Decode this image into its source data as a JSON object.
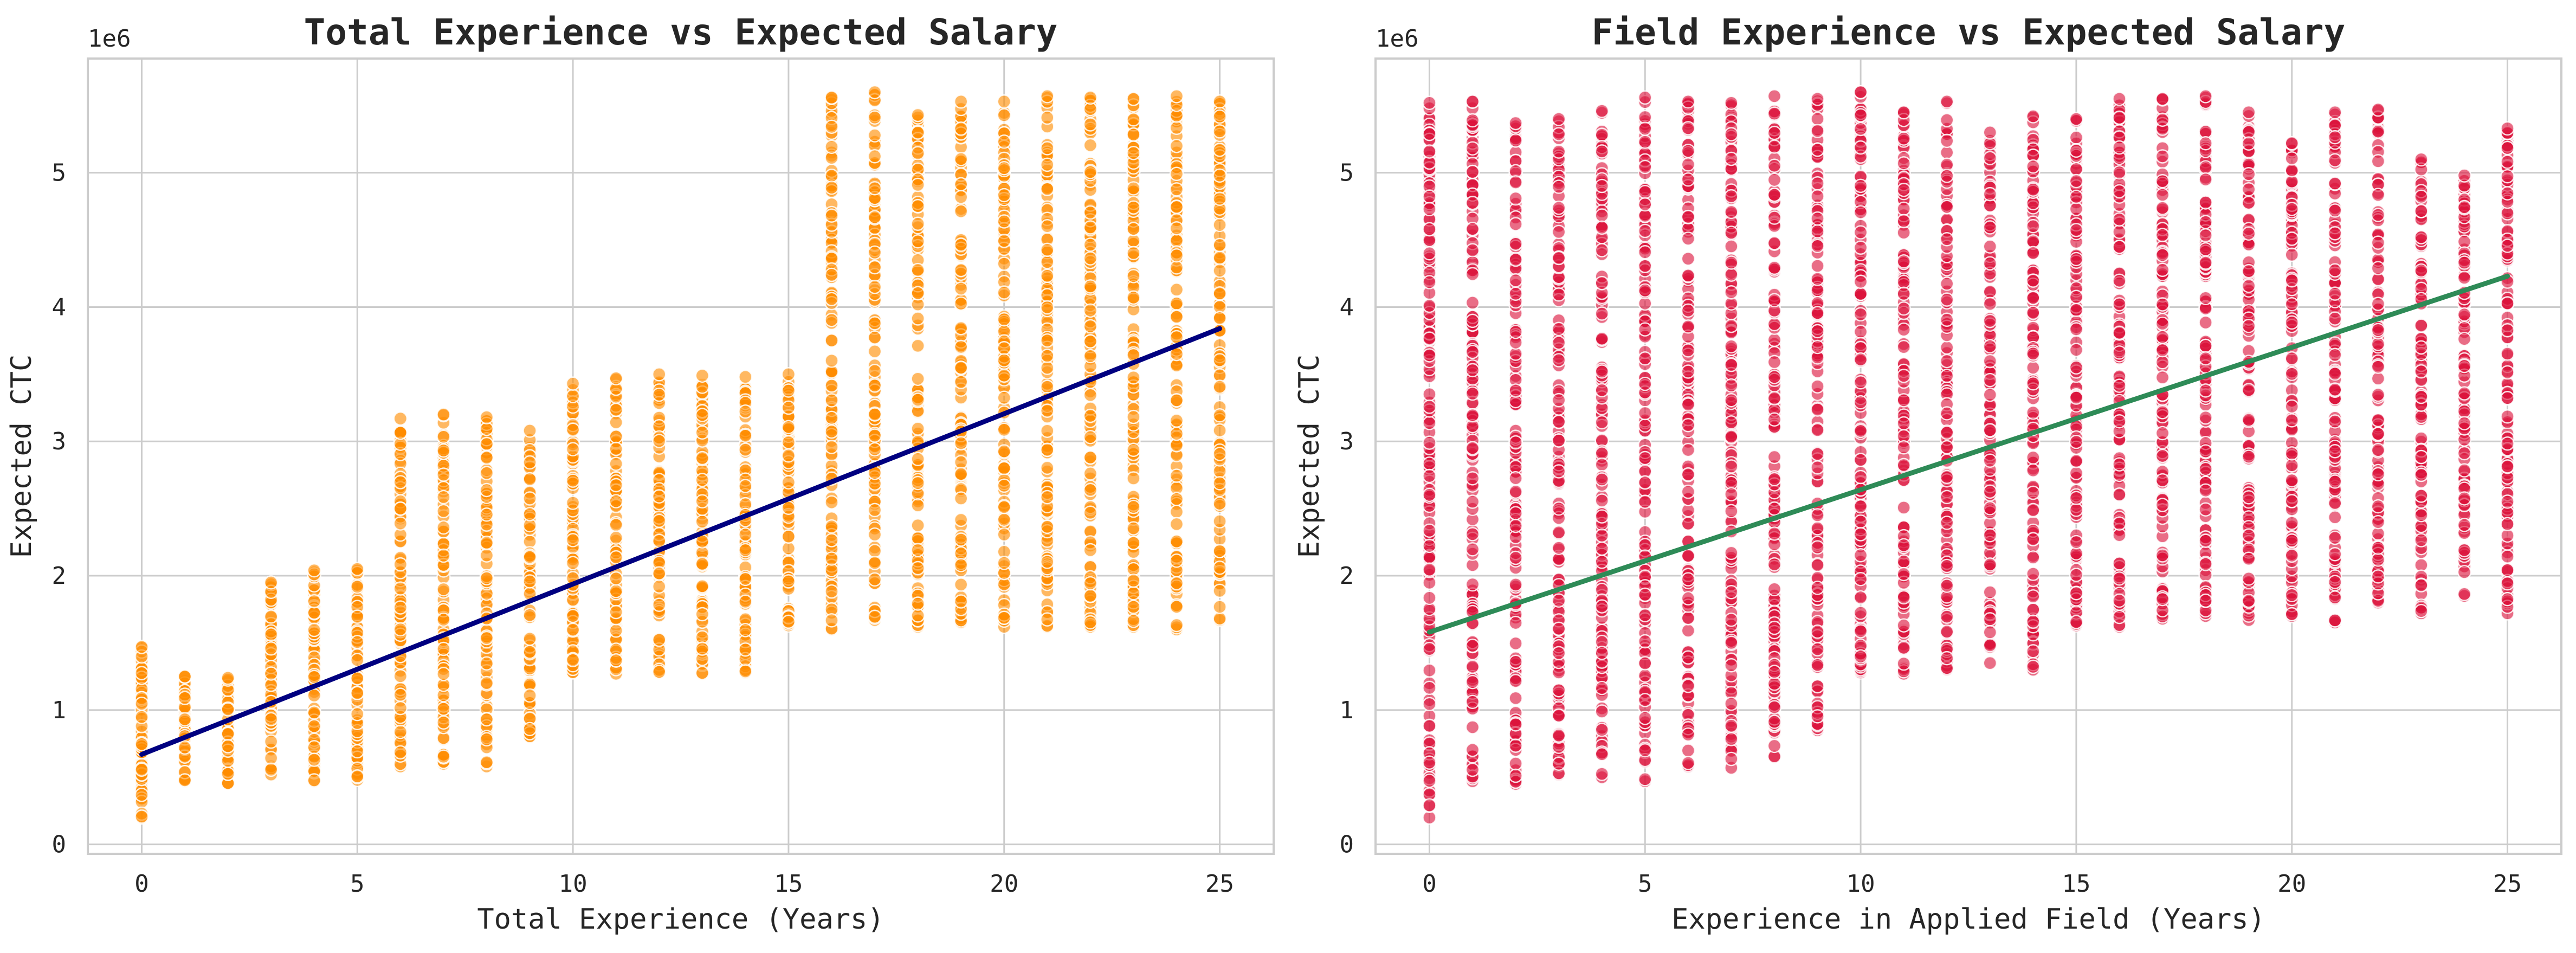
{
  "chart_data": [
    {
      "type": "scatter",
      "title": "Total Experience vs Expected Salary",
      "xlabel": "Total Experience (Years)",
      "ylabel": "Expected CTC",
      "y_offset_label": "1e6",
      "xlim": [
        -1.25,
        26.25
      ],
      "ylim": [
        -0.07,
        5.85
      ],
      "xticks": [
        0,
        5,
        10,
        15,
        20,
        25
      ],
      "xtick_labels": [
        "0",
        "5",
        "10",
        "15",
        "20",
        "25"
      ],
      "yticks": [
        0,
        1,
        2,
        3,
        4,
        5
      ],
      "ytick_labels": [
        "0",
        "1",
        "2",
        "3",
        "4",
        "5"
      ],
      "y_scale": "1e6",
      "grid": true,
      "point_color": "#ff8c00",
      "line_color": "#000080",
      "series": [
        {
          "kind": "points",
          "x": [
            0,
            1,
            2,
            3,
            4,
            5,
            6,
            7,
            8,
            9,
            10,
            11,
            12,
            13,
            14,
            15,
            16,
            17,
            18,
            19,
            20,
            21,
            22,
            23,
            24,
            25
          ],
          "y_min": [
            0.2,
            0.47,
            0.45,
            0.52,
            0.47,
            0.48,
            0.58,
            0.6,
            0.58,
            0.8,
            1.28,
            1.27,
            1.28,
            1.27,
            1.28,
            1.63,
            1.6,
            1.67,
            1.62,
            1.65,
            1.62,
            1.62,
            1.62,
            1.62,
            1.6,
            1.67
          ],
          "y_max": [
            1.47,
            1.25,
            1.24,
            1.95,
            2.04,
            2.05,
            3.17,
            3.2,
            3.18,
            3.08,
            3.43,
            3.47,
            3.5,
            3.49,
            3.48,
            3.5,
            5.56,
            5.6,
            5.43,
            5.53,
            5.53,
            5.57,
            5.56,
            5.55,
            5.57,
            5.53
          ]
        },
        {
          "kind": "regression-line",
          "x": [
            0,
            25
          ],
          "y": [
            0.67,
            3.84
          ]
        }
      ]
    },
    {
      "type": "scatter",
      "title": "Field Experience vs Expected Salary",
      "xlabel": "Experience in Applied Field (Years)",
      "ylabel": "Expected CTC",
      "y_offset_label": "1e6",
      "xlim": [
        -1.25,
        26.25
      ],
      "ylim": [
        -0.07,
        5.85
      ],
      "xticks": [
        0,
        5,
        10,
        15,
        20,
        25
      ],
      "xtick_labels": [
        "0",
        "5",
        "10",
        "15",
        "20",
        "25"
      ],
      "yticks": [
        0,
        1,
        2,
        3,
        4,
        5
      ],
      "ytick_labels": [
        "0",
        "1",
        "2",
        "3",
        "4",
        "5"
      ],
      "y_scale": "1e6",
      "grid": true,
      "point_color": "#dc143c",
      "line_color": "#2e8b57",
      "series": [
        {
          "kind": "points",
          "x": [
            0,
            1,
            2,
            3,
            4,
            5,
            6,
            7,
            8,
            9,
            10,
            11,
            12,
            13,
            14,
            15,
            16,
            17,
            18,
            19,
            20,
            21,
            22,
            23,
            24,
            25
          ],
          "y_min": [
            0.2,
            0.47,
            0.45,
            0.52,
            0.5,
            0.47,
            0.58,
            0.57,
            0.65,
            0.85,
            1.28,
            1.27,
            1.3,
            1.35,
            1.3,
            1.63,
            1.62,
            1.68,
            1.7,
            1.67,
            1.7,
            1.65,
            1.8,
            1.72,
            1.85,
            1.72
          ],
          "y_max": [
            5.52,
            5.53,
            5.37,
            5.4,
            5.46,
            5.56,
            5.53,
            5.52,
            5.57,
            5.55,
            5.6,
            5.45,
            5.53,
            5.3,
            5.42,
            5.4,
            5.55,
            5.55,
            5.57,
            5.45,
            5.22,
            5.45,
            5.47,
            5.1,
            4.98,
            5.33
          ]
        },
        {
          "kind": "regression-line",
          "x": [
            0,
            25
          ],
          "y": [
            1.58,
            4.23
          ]
        }
      ]
    }
  ]
}
